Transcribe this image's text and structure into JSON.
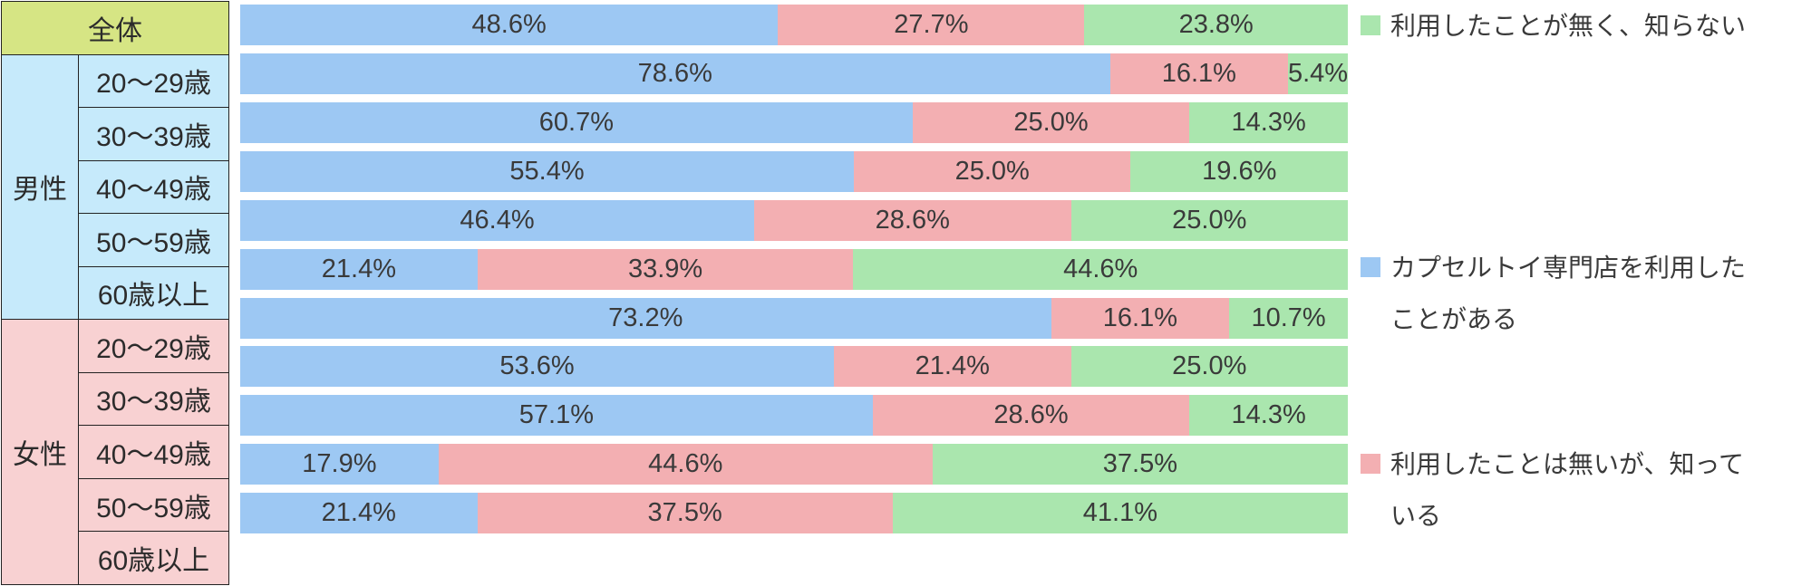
{
  "colors": {
    "series_blue": "#9DC8F3",
    "series_pink": "#F3AFB2",
    "series_green": "#AAE6AE",
    "overall_row_bg": "#D6E584",
    "male_rows_bg": "#C6EAFB",
    "female_rows_bg": "#F8D1D2",
    "table_border": "#222222",
    "label_text": "#3A3A3A"
  },
  "table": {
    "overall_label": "全体",
    "groups": [
      {
        "label": "男性",
        "bg": "#C6EAFB",
        "ages": [
          "20〜29歳",
          "30〜39歳",
          "40〜49歳",
          "50〜59歳",
          "60歳以上"
        ]
      },
      {
        "label": "女性",
        "bg": "#F8D1D2",
        "ages": [
          "20〜29歳",
          "30〜39歳",
          "40〜49歳",
          "50〜59歳",
          "60歳以上"
        ]
      }
    ]
  },
  "legend": [
    {
      "label": "カプセルトイ専門店を利用したことがある",
      "color": "#9DC8F3"
    },
    {
      "label": "利用したことは無いが、知っている",
      "color": "#F3AFB2"
    },
    {
      "label": "利用したことが無く、知らない",
      "color": "#AAE6AE"
    }
  ],
  "chart_data": {
    "type": "bar",
    "orientation": "horizontal",
    "stacked": true,
    "unit": "%",
    "xlim": [
      0,
      100
    ],
    "grid": false,
    "legend_position": "right",
    "value_labels": "inside-center, one decimal + %",
    "categories": [
      "全体",
      "男性 20〜29歳",
      "男性 30〜39歳",
      "男性 40〜49歳",
      "男性 50〜59歳",
      "男性 60歳以上",
      "女性 20〜29歳",
      "女性 30〜39歳",
      "女性 40〜49歳",
      "女性 50〜59歳",
      "女性 60歳以上"
    ],
    "series": [
      {
        "name": "カプセルトイ専門店を利用したことがある",
        "color": "#9DC8F3",
        "values": [
          48.6,
          78.6,
          60.7,
          55.4,
          46.4,
          21.4,
          73.2,
          53.6,
          57.1,
          17.9,
          21.4
        ]
      },
      {
        "name": "利用したことは無いが、知っている",
        "color": "#F3AFB2",
        "values": [
          27.7,
          16.1,
          25.0,
          25.0,
          28.6,
          33.9,
          16.1,
          21.4,
          28.6,
          44.6,
          37.5
        ]
      },
      {
        "name": "利用したことが無く、知らない",
        "color": "#AAE6AE",
        "values": [
          23.8,
          5.4,
          14.3,
          19.6,
          25.0,
          44.6,
          10.7,
          25.0,
          14.3,
          37.5,
          41.1
        ]
      }
    ]
  }
}
